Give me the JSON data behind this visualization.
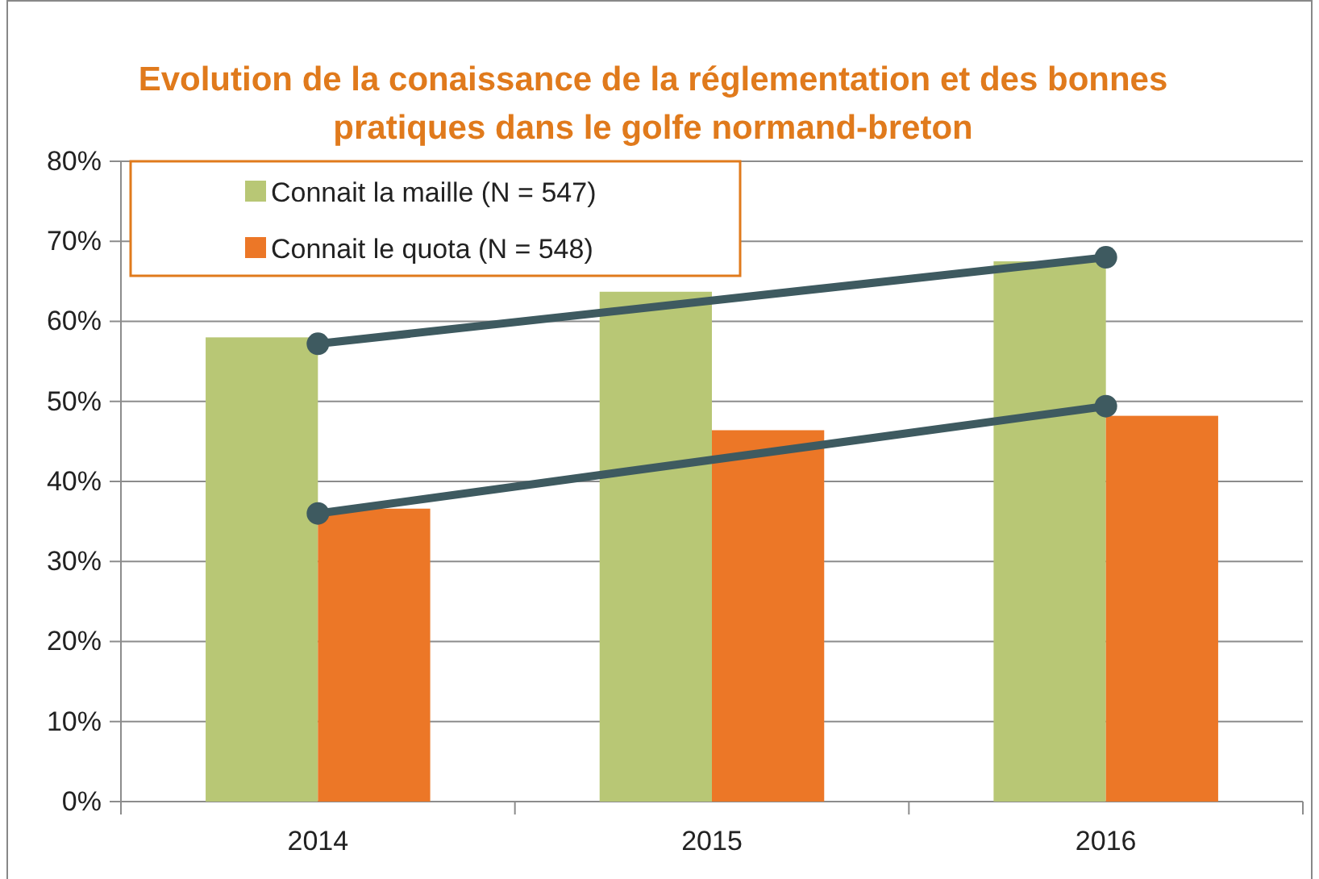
{
  "chart_data": {
    "type": "bar",
    "title": "Evolution de la conaissance de la réglementation et des bonnes pratiques dans le golfe normand-breton",
    "categories": [
      "2014",
      "2015",
      "2016"
    ],
    "series": [
      {
        "name": "Connait la maille (N = 547)",
        "color": "#b8c775",
        "values": [
          58,
          63.7,
          67.5
        ]
      },
      {
        "name": "Connait le quota (N = 548)",
        "color": "#ec7727",
        "values": [
          36.6,
          46.4,
          48.2
        ]
      },
      {
        "type": "line",
        "color": "#3e5a60",
        "values": [
          57.2,
          null,
          68
        ],
        "marker": "circle"
      },
      {
        "type": "line",
        "color": "#3e5a60",
        "values": [
          36,
          null,
          49.4
        ],
        "marker": "circle"
      }
    ],
    "ylim": [
      0,
      80
    ],
    "yticks": [
      {
        "value": 0,
        "label": "0%"
      },
      {
        "value": 10,
        "label": "10%"
      },
      {
        "value": 20,
        "label": "20%"
      },
      {
        "value": 30,
        "label": "30%"
      },
      {
        "value": 40,
        "label": "40%"
      },
      {
        "value": 50,
        "label": "50%"
      },
      {
        "value": 60,
        "label": "60%"
      },
      {
        "value": 70,
        "label": "70%"
      },
      {
        "value": 80,
        "label": "80%"
      }
    ],
    "grid": "y",
    "legend": "top left"
  }
}
